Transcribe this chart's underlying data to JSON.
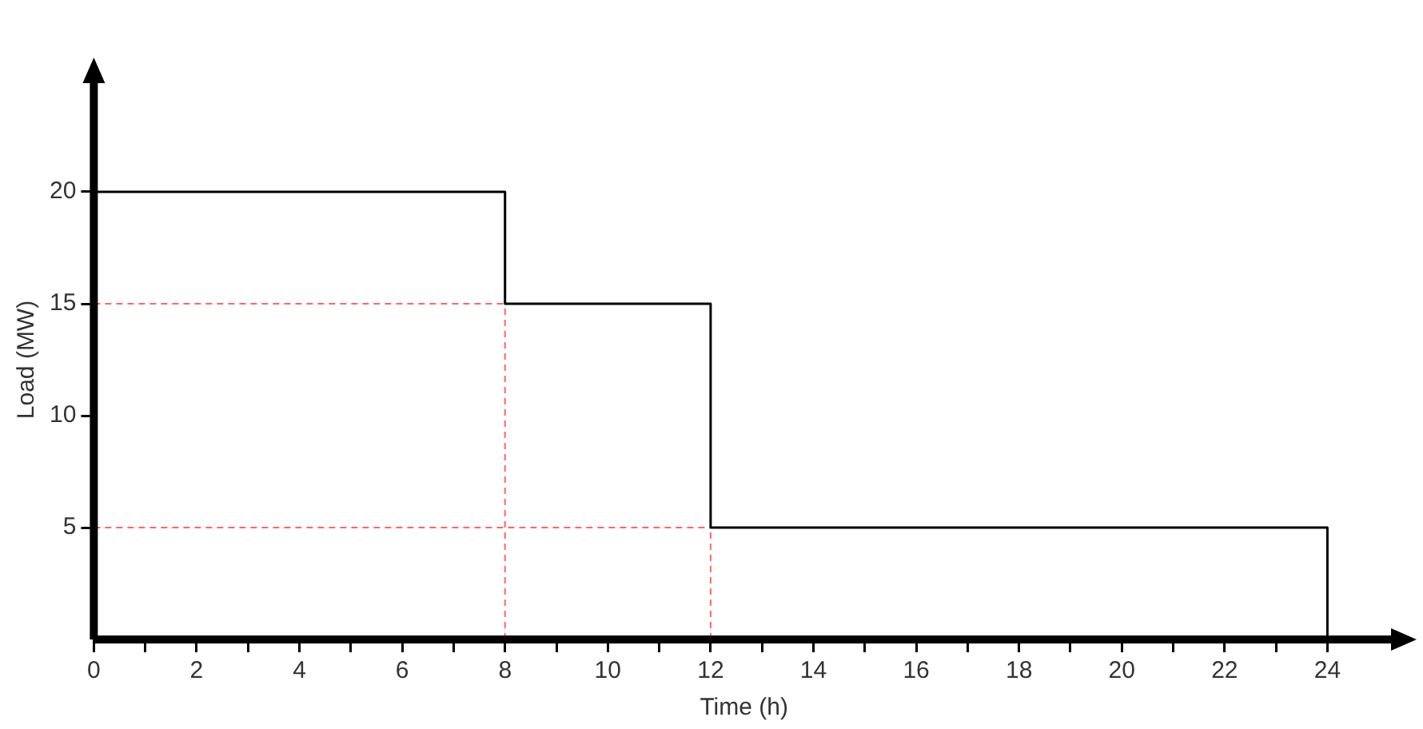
{
  "chart_data": {
    "type": "step",
    "xlabel": "Time (h)",
    "ylabel": "Load (MW)",
    "x": [
      0,
      8,
      12,
      24,
      24
    ],
    "series": [
      {
        "color": "#000000",
        "values": [
          20,
          15,
          5,
          5,
          0
        ]
      }
    ],
    "xlim": [
      0,
      25.3
    ],
    "ylim": [
      0,
      25
    ],
    "xticks": [
      0,
      {
        "value": 1,
        "label": null
      },
      2,
      {
        "value": 3,
        "label": null
      },
      4,
      {
        "value": 5,
        "label": null
      },
      6,
      {
        "value": 7,
        "label": null
      },
      8,
      {
        "value": 9,
        "label": null
      },
      10,
      {
        "value": 11,
        "label": null
      },
      12,
      {
        "value": 13,
        "label": null
      },
      14,
      {
        "value": 15,
        "label": null
      },
      16,
      {
        "value": 17,
        "label": null
      },
      18,
      {
        "value": 19,
        "label": null
      },
      20,
      {
        "value": 21,
        "label": null
      },
      22,
      {
        "value": 23,
        "label": null
      },
      24
    ],
    "yticks": [
      5,
      10,
      15,
      20
    ],
    "ref_lines": [
      {
        "axis": "y",
        "value": 15,
        "color": "#ff6666",
        "line_style": "dashed"
      },
      {
        "axis": "y",
        "value": 5,
        "color": "#ff6666",
        "line_style": "dashed"
      },
      {
        "axis": "x",
        "value": 8,
        "color": "#ff6666",
        "line_style": "dashed"
      },
      {
        "axis": "x",
        "value": 12,
        "color": "#ff6666",
        "line_style": "dashed"
      }
    ],
    "legend": false,
    "marker": "none",
    "line_style": "solid"
  }
}
